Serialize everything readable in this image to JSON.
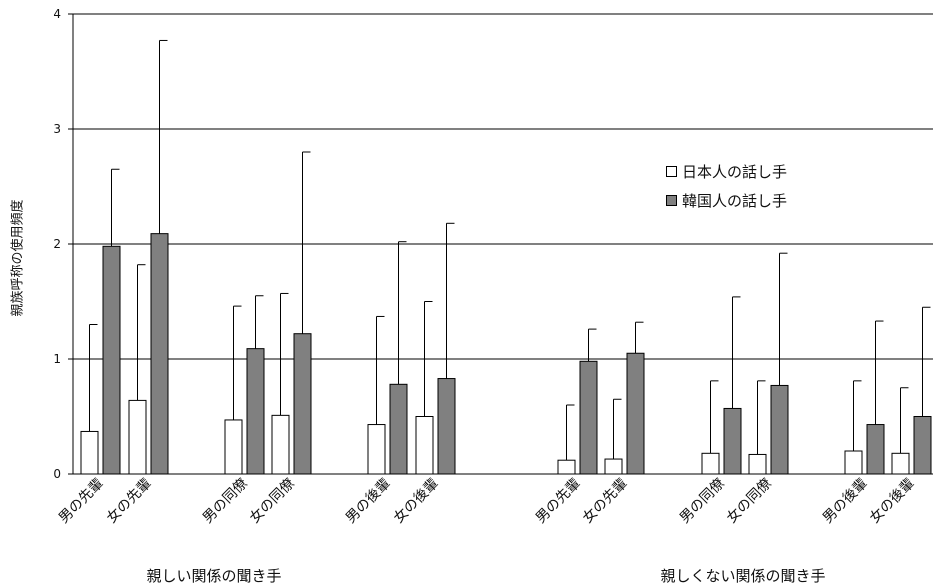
{
  "chart_data": {
    "type": "bar",
    "ylabel": "親族呼称の使用頻度",
    "ylim": [
      0,
      4
    ],
    "yticks": [
      "0",
      "1",
      "2",
      "3",
      "4"
    ],
    "grid": true,
    "legend_position": "top-right",
    "groups": [
      {
        "label": "親しい関係の聞き手",
        "categories": [
          "男の先輩",
          "女の先輩",
          "男の同僚",
          "女の同僚",
          "男の後輩",
          "女の後輩"
        ]
      },
      {
        "label": "親しくない関係の聞き手",
        "categories": [
          "男の先輩",
          "女の先輩",
          "男の同僚",
          "女の同僚",
          "男の後輩",
          "女の後輩"
        ]
      }
    ],
    "series": [
      {
        "name": "日本人の話し手",
        "color": "#ffffff",
        "values": [
          0.37,
          0.64,
          0.47,
          0.51,
          0.43,
          0.5,
          0.12,
          0.13,
          0.18,
          0.17,
          0.2,
          0.18
        ],
        "error_upper": [
          1.3,
          1.82,
          1.46,
          1.57,
          1.37,
          1.5,
          0.6,
          0.65,
          0.81,
          0.81,
          0.81,
          0.75
        ]
      },
      {
        "name": "韓国人の話し手",
        "color": "#808080",
        "values": [
          1.98,
          2.09,
          1.09,
          1.22,
          0.78,
          0.83,
          0.98,
          1.05,
          0.57,
          0.77,
          0.43,
          0.5
        ],
        "error_upper": [
          2.65,
          3.77,
          1.55,
          2.8,
          2.02,
          2.18,
          1.26,
          1.32,
          1.54,
          1.92,
          1.33,
          1.45
        ]
      }
    ]
  }
}
